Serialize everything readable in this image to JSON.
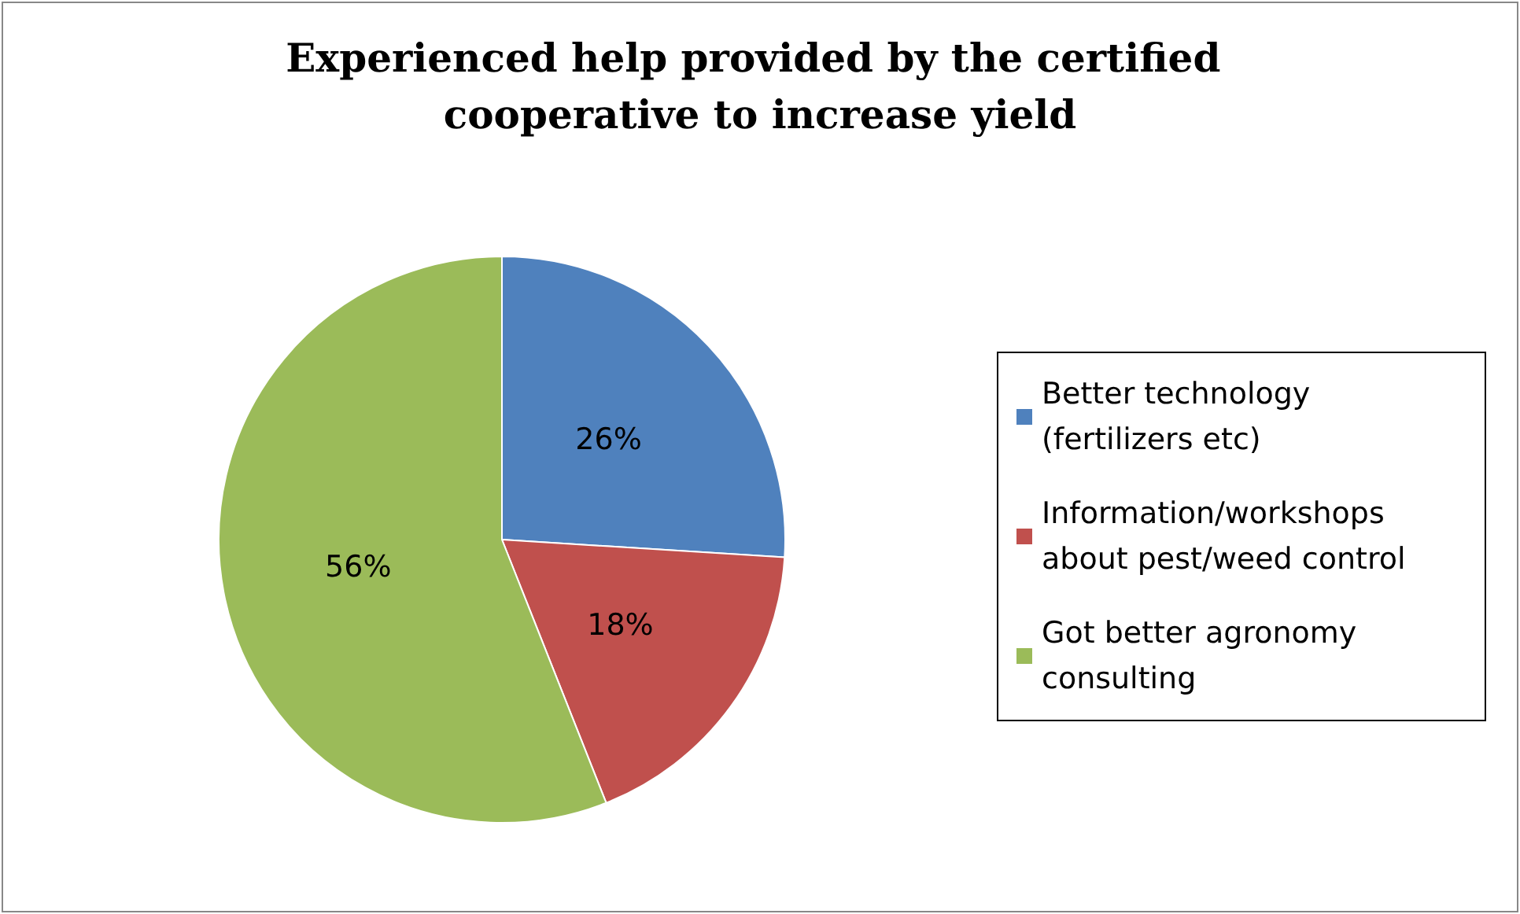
{
  "chart_data": {
    "type": "pie",
    "title": "Experienced help provided by the certified cooperative to increase yield",
    "categories": [
      "Better technology (fertilizers etc)",
      "Information/workshops about pest/weed control",
      "Got better agronomy consulting"
    ],
    "values": [
      26,
      18,
      56
    ],
    "colors": [
      "#4f81bd",
      "#c0504d",
      "#9bbb59"
    ],
    "value_labels": [
      "26%",
      "18%",
      "56%"
    ],
    "legend": "right"
  }
}
